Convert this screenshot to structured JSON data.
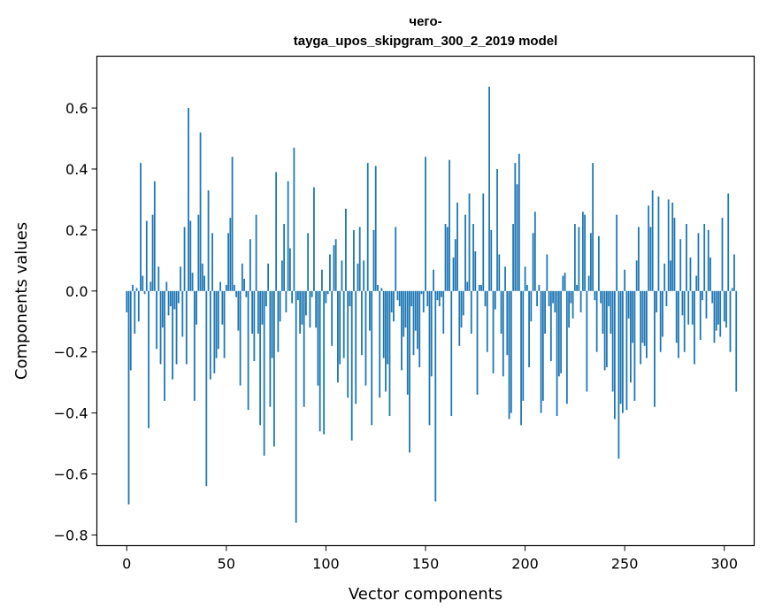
{
  "chart_data": {
    "type": "bar",
    "title_lines": [
      "чего-",
      "tayga_upos_skipgram_300_2_2019 model"
    ],
    "xlabel": "Vector components",
    "ylabel": "Components values",
    "xlim": [
      -15,
      315
    ],
    "ylim": [
      -0.835,
      0.77
    ],
    "x_ticks": [
      0,
      50,
      100,
      150,
      200,
      250,
      300
    ],
    "x_tick_labels": [
      "0",
      "50",
      "100",
      "150",
      "200",
      "250",
      "300"
    ],
    "y_ticks": [
      -0.8,
      -0.6,
      -0.4,
      -0.2,
      0.0,
      0.2,
      0.4,
      0.6
    ],
    "y_tick_labels": [
      "−0.8",
      "−0.6",
      "−0.4",
      "−0.2",
      "0.0",
      "0.2",
      "0.4",
      "0.6"
    ],
    "grid": false,
    "bar_color": "#1f77b4",
    "values": [
      -0.07,
      -0.7,
      -0.26,
      0.02,
      -0.14,
      0.01,
      -0.1,
      0.42,
      0.05,
      -0.01,
      0.23,
      -0.45,
      0.03,
      0.25,
      0.36,
      -0.19,
      0.08,
      -0.24,
      -0.12,
      -0.36,
      0.03,
      -0.08,
      -0.05,
      -0.29,
      -0.06,
      -0.24,
      -0.04,
      0.08,
      -0.15,
      0.21,
      -0.24,
      0.6,
      0.23,
      0.06,
      -0.36,
      -0.11,
      0.25,
      0.52,
      0.09,
      0.05,
      -0.64,
      0.33,
      -0.29,
      0.19,
      -0.27,
      -0.22,
      -0.19,
      0.03,
      -0.11,
      -0.22,
      0.02,
      0.19,
      0.24,
      0.44,
      0.02,
      -0.02,
      -0.13,
      -0.31,
      0.09,
      0.04,
      -0.02,
      -0.39,
      0.17,
      -0.14,
      -0.23,
      0.25,
      -0.14,
      -0.44,
      -0.11,
      -0.54,
      -0.05,
      0.09,
      -0.38,
      -0.22,
      -0.51,
      0.39,
      -0.2,
      -0.1,
      0.1,
      0.22,
      -0.07,
      0.36,
      0.14,
      -0.04,
      0.47,
      -0.76,
      -0.03,
      -0.14,
      -0.11,
      -0.38,
      -0.08,
      0.19,
      -0.12,
      -0.02,
      0.34,
      -0.12,
      -0.31,
      -0.46,
      0.07,
      -0.47,
      -0.04,
      -0.01,
      0.12,
      -0.18,
      0.15,
      0.17,
      -0.3,
      -0.24,
      0.1,
      -0.22,
      0.27,
      -0.35,
      -0.05,
      -0.49,
      0.2,
      -0.37,
      0.09,
      0.21,
      -0.21,
      0.1,
      -0.31,
      0.42,
      -0.13,
      -0.44,
      0.2,
      0.41,
      0.02,
      -0.35,
      0.01,
      -0.22,
      -0.33,
      -0.24,
      -0.41,
      -0.07,
      -0.1,
      0.21,
      -0.03,
      -0.05,
      -0.26,
      -0.15,
      -0.12,
      -0.34,
      -0.53,
      -0.05,
      -0.21,
      -0.13,
      -0.19,
      -0.25,
      -0.01,
      -0.07,
      0.44,
      -0.05,
      -0.44,
      -0.28,
      0.07,
      -0.69,
      -0.03,
      -0.05,
      -0.02,
      -0.14,
      0.22,
      0.21,
      0.43,
      -0.41,
      0.11,
      0.17,
      0.29,
      -0.18,
      -0.12,
      -0.08,
      0.25,
      0.03,
      0.32,
      -0.14,
      0.22,
      0.13,
      -0.34,
      0.02,
      0.02,
      0.32,
      -0.05,
      -0.2,
      0.67,
      0.2,
      -0.27,
      -0.06,
      0.4,
      0.12,
      -0.14,
      -0.28,
      0.08,
      -0.21,
      -0.42,
      -0.4,
      0.22,
      0.42,
      0.35,
      0.45,
      -0.44,
      -0.36,
      0.08,
      0.02,
      -0.25,
      -0.1,
      0.19,
      0.26,
      -0.05,
      0.02,
      -0.4,
      -0.36,
      -0.14,
      0.12,
      -0.05,
      -0.23,
      -0.04,
      -0.07,
      -0.41,
      -0.28,
      -0.27,
      0.05,
      0.06,
      -0.37,
      -0.12,
      -0.04,
      -0.09,
      0.22,
      0.02,
      0.21,
      -0.07,
      0.26,
      0.25,
      -0.33,
      0.05,
      0.19,
      0.42,
      -0.03,
      -0.2,
      0.18,
      -0.04,
      -0.14,
      -0.26,
      -0.25,
      -0.05,
      -0.14,
      -0.33,
      -0.42,
      0.25,
      -0.55,
      -0.37,
      -0.4,
      0.07,
      -0.39,
      -0.09,
      -0.3,
      -0.17,
      -0.36,
      0.1,
      0.21,
      -0.24,
      -0.17,
      -0.18,
      -0.22,
      0.28,
      0.21,
      0.33,
      -0.38,
      -0.07,
      0.31,
      -0.2,
      -0.15,
      0.09,
      -0.05,
      0.3,
      0.1,
      0.29,
      0.24,
      -0.17,
      -0.22,
      0.17,
      -0.08,
      -0.2,
      0.22,
      -0.11,
      0.11,
      -0.11,
      -0.24,
      0.05,
      0.19,
      -0.16,
      -0.03,
      0.22,
      -0.09,
      0.2,
      0.11,
      -0.04,
      -0.17,
      -0.13,
      -0.11,
      -0.15,
      0.24,
      -0.1,
      -0.12,
      0.32,
      -0.2,
      0.01,
      0.12,
      -0.33
    ]
  }
}
